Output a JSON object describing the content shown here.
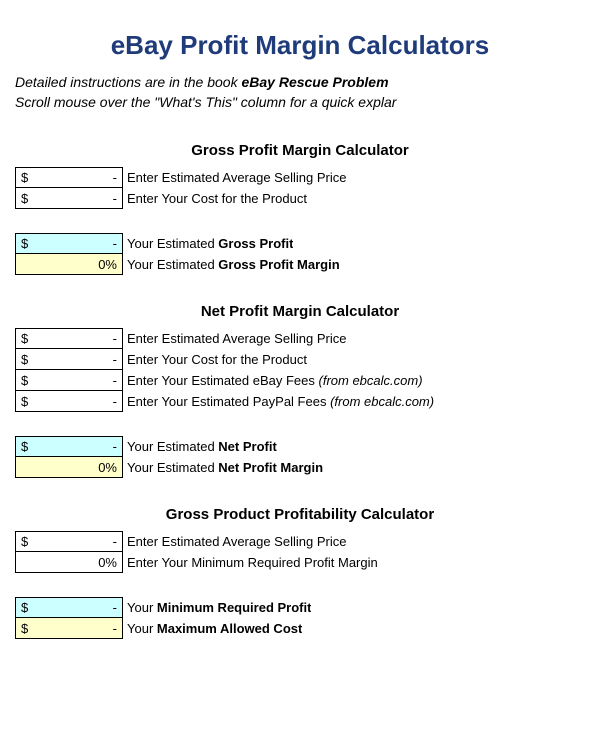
{
  "main_title": "eBay Profit Margin Calculators",
  "instructions_line1_pre": "Detailed instructions are in the book ",
  "instructions_line1_bold": "eBay Rescue Problem",
  "instructions_line2": "Scroll mouse over the \"What's This\" column for a quick explar",
  "gross": {
    "title": "Gross Profit Margin Calculator",
    "rows": [
      {
        "prefix": "$",
        "value": "-",
        "label": "Enter Estimated Average Selling Price",
        "bg": "white",
        "interact": true
      },
      {
        "prefix": "$",
        "value": "-",
        "label": "Enter Your Cost for the Product",
        "bg": "white",
        "interact": true
      }
    ],
    "results": [
      {
        "prefix": "$",
        "value": "-",
        "label_pre": "Your Estimated ",
        "label_bold": "Gross Profit",
        "bg": "cyan"
      },
      {
        "prefix": "",
        "value": "0%",
        "label_pre": "Your Estimated ",
        "label_bold": "Gross Profit Margin",
        "bg": "yellow"
      }
    ]
  },
  "net": {
    "title": "Net Profit Margin Calculator",
    "rows": [
      {
        "prefix": "$",
        "value": "-",
        "label": "Enter Estimated Average Selling Price",
        "bg": "white",
        "interact": true
      },
      {
        "prefix": "$",
        "value": "-",
        "label": "Enter Your Cost for the Product",
        "bg": "white",
        "interact": true
      },
      {
        "prefix": "$",
        "value": "-",
        "label_pre": "Enter Your Estimated eBay Fees ",
        "label_ital": "(from ebcalc.com)",
        "bg": "white",
        "interact": true
      },
      {
        "prefix": "$",
        "value": "-",
        "label_pre": "Enter Your Estimated PayPal Fees ",
        "label_ital": "(from ebcalc.com)",
        "bg": "white",
        "interact": true
      }
    ],
    "results": [
      {
        "prefix": "$",
        "value": "-",
        "label_pre": "Your Estimated ",
        "label_bold": "Net Profit",
        "bg": "cyan"
      },
      {
        "prefix": "",
        "value": "0%",
        "label_pre": "Your Estimated  ",
        "label_bold": "Net Profit Margin",
        "bg": "yellow"
      }
    ]
  },
  "product": {
    "title": "Gross Product Profitability Calculator",
    "rows": [
      {
        "prefix": "$",
        "value": "-",
        "label": "Enter Estimated Average Selling Price",
        "bg": "white",
        "interact": true
      },
      {
        "prefix": "",
        "value": "0%",
        "label": "Enter Your Minimum Required Profit Margin",
        "bg": "white",
        "interact": true
      }
    ],
    "results": [
      {
        "prefix": "$",
        "value": "-",
        "label_pre": "Your ",
        "label_bold": "Minimum Required Profit",
        "bg": "cyan"
      },
      {
        "prefix": "$",
        "value": "-",
        "label_pre": "Your ",
        "label_bold": "Maximum Allowed Cost",
        "bg": "yellow"
      }
    ]
  }
}
